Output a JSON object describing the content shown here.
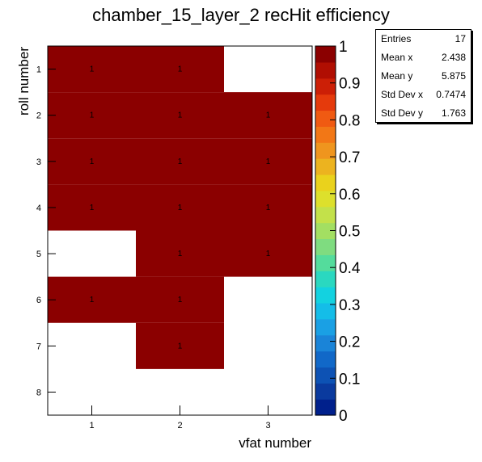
{
  "chart_data": {
    "type": "heatmap",
    "title": "chamber_15_layer_2 recHit efficiency",
    "xlabel": "vfat number",
    "ylabel": "roll number",
    "x_ticks": [
      "1",
      "2",
      "3"
    ],
    "y_ticks": [
      "1",
      "2",
      "3",
      "4",
      "5",
      "6",
      "7",
      "8"
    ],
    "zlim": [
      0,
      1
    ],
    "z_ticks": [
      "0",
      "0.1",
      "0.2",
      "0.3",
      "0.4",
      "0.5",
      "0.6",
      "0.7",
      "0.8",
      "0.9",
      "1"
    ],
    "fill_color": "#8b0000",
    "palette": [
      "#00208c",
      "#0a3a9e",
      "#0d52b4",
      "#1168c8",
      "#1a84d8",
      "#1aa0e4",
      "#14bde8",
      "#13d2e0",
      "#2ad8c0",
      "#54dc9c",
      "#7fdc80",
      "#a3df62",
      "#c3e14a",
      "#dde02c",
      "#ead21c",
      "#ecb31f",
      "#ef951e",
      "#f27716",
      "#f05a12",
      "#e53a0c",
      "#cc1f06",
      "#b00e02",
      "#8b0000"
    ],
    "cells": [
      {
        "x": 1,
        "y": 1,
        "value": 1
      },
      {
        "x": 2,
        "y": 1,
        "value": 1
      },
      {
        "x": 1,
        "y": 2,
        "value": 1
      },
      {
        "x": 2,
        "y": 2,
        "value": 1
      },
      {
        "x": 3,
        "y": 2,
        "value": 1
      },
      {
        "x": 1,
        "y": 3,
        "value": 1
      },
      {
        "x": 2,
        "y": 3,
        "value": 1
      },
      {
        "x": 3,
        "y": 3,
        "value": 1
      },
      {
        "x": 1,
        "y": 4,
        "value": 1
      },
      {
        "x": 2,
        "y": 4,
        "value": 1
      },
      {
        "x": 3,
        "y": 4,
        "value": 1
      },
      {
        "x": 2,
        "y": 5,
        "value": 1
      },
      {
        "x": 3,
        "y": 5,
        "value": 1
      },
      {
        "x": 1,
        "y": 6,
        "value": 1
      },
      {
        "x": 2,
        "y": 6,
        "value": 1
      },
      {
        "x": 2,
        "y": 7,
        "value": 1
      }
    ],
    "stats": [
      {
        "label": "Entries",
        "value": "17"
      },
      {
        "label": "Mean x",
        "value": "2.438"
      },
      {
        "label": "Mean y",
        "value": "5.875"
      },
      {
        "label": "Std Dev x",
        "value": "0.7474"
      },
      {
        "label": "Std Dev y",
        "value": "1.763"
      }
    ]
  }
}
